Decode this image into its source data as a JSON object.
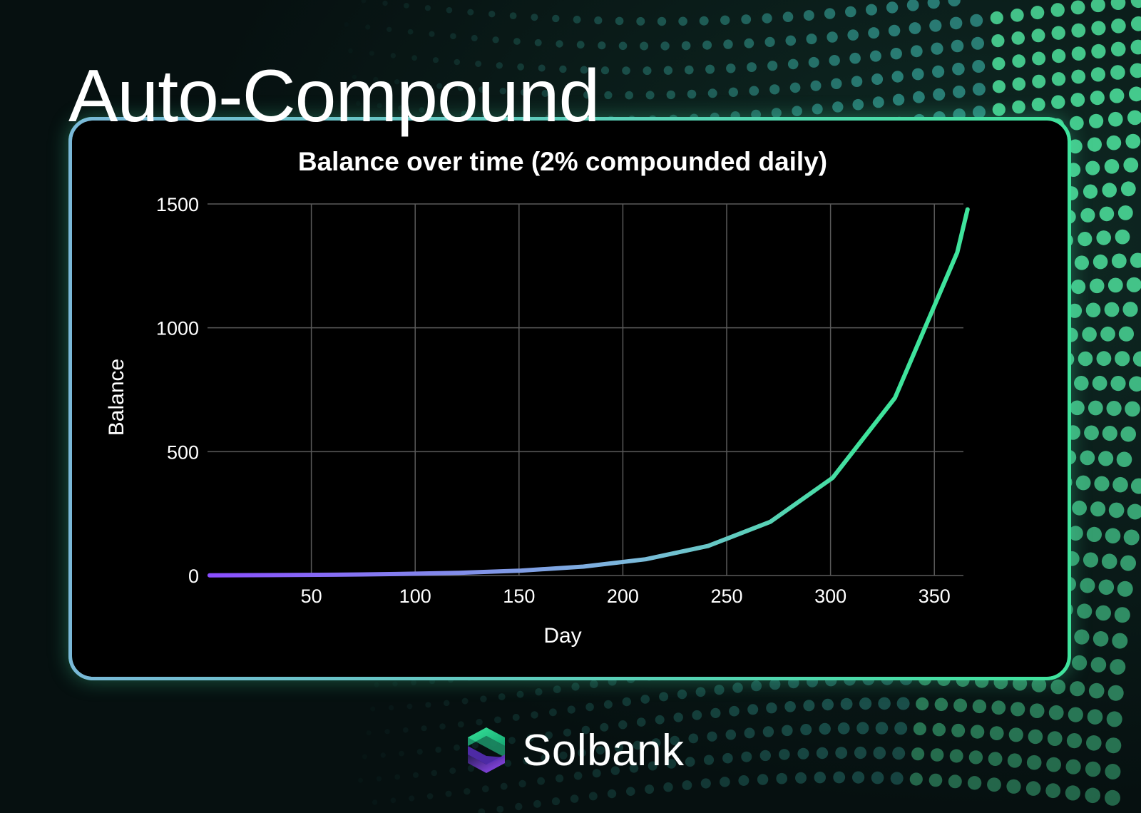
{
  "page": {
    "headline": "Auto-Compound",
    "brand_name": "Solbank"
  },
  "colors": {
    "background": "#061010",
    "accent_green": "#3fe39c",
    "accent_purple": "#8a4dff",
    "dot": "#4fd4a4"
  },
  "icons": {
    "brand_logo": "solbank-s-logo-icon"
  },
  "chart_data": {
    "type": "line",
    "title": "Balance over time (2% compounded daily)",
    "xlabel": "Day",
    "ylabel": "Balance",
    "xlim": [
      1,
      365
    ],
    "ylim": [
      0,
      1500
    ],
    "x_ticks": [
      50,
      100,
      150,
      200,
      250,
      300,
      350
    ],
    "y_ticks": [
      0,
      500,
      1000,
      1500
    ],
    "grid": true,
    "legend": "none",
    "series": [
      {
        "x": [
          1,
          31,
          61,
          91,
          121,
          151,
          181,
          211,
          241,
          271,
          301,
          331,
          361,
          366
        ],
        "values": [
          1.0,
          1.8,
          3.3,
          6.0,
          10.9,
          19.8,
          36.0,
          65.5,
          119.1,
          216.7,
          394.1,
          716.8,
          1303.9,
          1478.0
        ]
      }
    ]
  }
}
